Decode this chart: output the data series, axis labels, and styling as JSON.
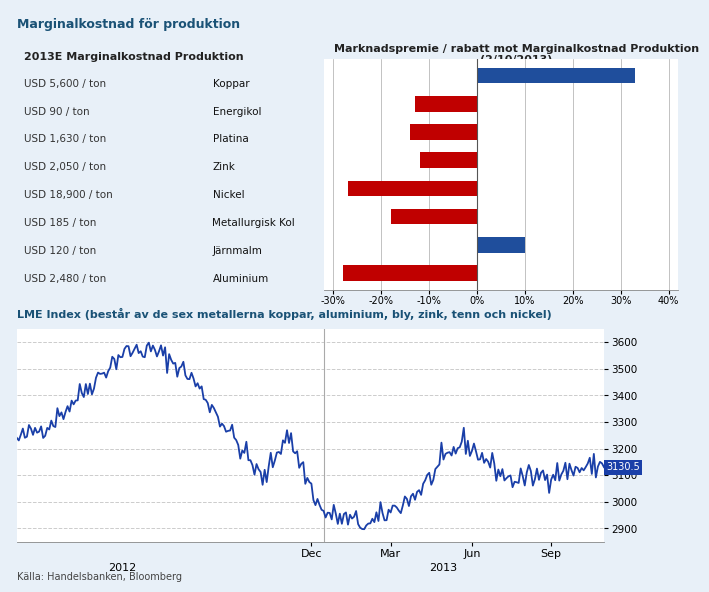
{
  "title1": "Marginalkostnad för produktion",
  "title2": "LME Index (består av de sex metallerna koppar, aluminium, bly, zink, tenn och nickel)",
  "source": "Källa: Handelsbanken, Bloomberg",
  "bar_subtitle1": "2013E Marginalkostnad Produktion",
  "bar_subtitle2": "Marknadspremie / rabatt mot Marginalkostnad Produktion\n(2/10/2013)",
  "categories": [
    "Koppar",
    "Energikol",
    "Platina",
    "Zink",
    "Nickel",
    "Metallurgisk Kol",
    "Järnmalm",
    "Aluminium"
  ],
  "costs": [
    "USD 5,600 / ton",
    "USD 90 / ton",
    "USD 1,630 / ton",
    "USD 2,050 / ton",
    "USD 18,900 / ton",
    "USD 185 / ton",
    "USD 120 / ton",
    "USD 2,480 / ton"
  ],
  "values": [
    33,
    -13,
    -14,
    -12,
    -27,
    -18,
    10,
    -28
  ],
  "bar_colors": [
    "#1f4e9c",
    "#c00000",
    "#c00000",
    "#c00000",
    "#c00000",
    "#c00000",
    "#1f4e9c",
    "#c00000"
  ],
  "xlim": [
    -32,
    42
  ],
  "xticks": [
    -30,
    -20,
    -10,
    0,
    10,
    20,
    30,
    40
  ],
  "header_bg": "#cfe0f0",
  "panel_bg": "#ffffff",
  "fig_bg": "#e8f0f8",
  "grid_color": "#aaaaaa",
  "lme_last_value": 3130.5,
  "lme_ylim": [
    2850,
    3650
  ],
  "lme_yticks": [
    2900,
    3000,
    3100,
    3200,
    3300,
    3400,
    3500,
    3600
  ]
}
